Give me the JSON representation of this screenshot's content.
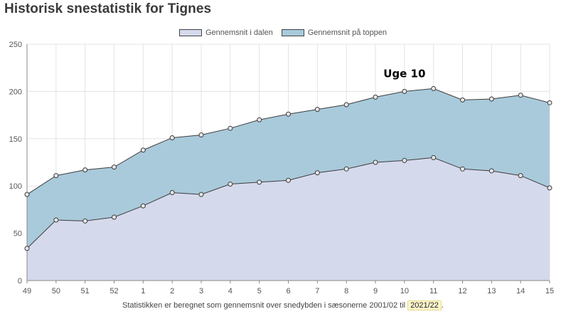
{
  "page": {
    "title": "Historisk snestatistik for Tignes",
    "footnote_prefix": "Statistikken er beregnet som gennemsnit over snedybden i sæsonerne 2001/02 til",
    "season_value": "2021/22",
    "footnote_suffix": "."
  },
  "colors": {
    "valley_fill": "#d5d9ec",
    "top_fill": "#a9cadb",
    "line": "#3d3d3d",
    "grid": "#e3e3e3",
    "point_fill": "#e6e6e6"
  },
  "chart_data": {
    "type": "area",
    "title": "Historisk snestatistik for Tignes",
    "xlabel": "",
    "ylabel": "",
    "categories": [
      "49",
      "50",
      "51",
      "52",
      "1",
      "2",
      "3",
      "4",
      "5",
      "6",
      "7",
      "8",
      "9",
      "10",
      "11",
      "12",
      "13",
      "14",
      "15"
    ],
    "ylim": [
      0,
      250
    ],
    "yticks": [
      0,
      50,
      100,
      150,
      200,
      250
    ],
    "grid": true,
    "legend_position": "top-center",
    "series": [
      {
        "name": "Gennemsnit i dalen",
        "color": "#d5d9ec",
        "values": [
          34,
          64,
          63,
          67,
          79,
          93,
          91,
          102,
          104,
          106,
          114,
          118,
          125,
          127,
          130,
          118,
          116,
          111,
          98
        ]
      },
      {
        "name": "Gennemsnit på toppen",
        "color": "#a9cadb",
        "values": [
          91,
          111,
          117,
          120,
          138,
          151,
          154,
          161,
          170,
          176,
          181,
          186,
          194,
          200,
          203,
          191,
          192,
          196,
          188
        ]
      }
    ],
    "annotations": [
      {
        "text": "Uge 10",
        "x": "10"
      }
    ]
  }
}
